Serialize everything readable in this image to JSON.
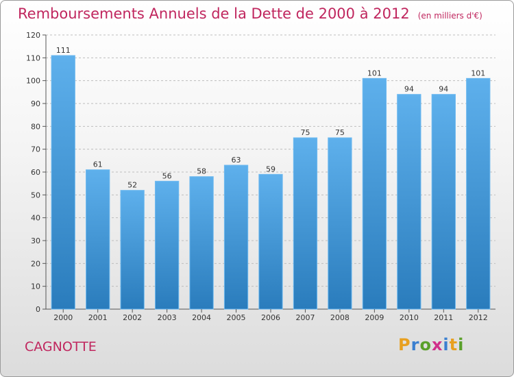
{
  "header": {
    "title": "Remboursements Annuels de la Dette de 2000 à 2012",
    "unit": "(en milliers d'€)"
  },
  "commune": "CAGNOTTE",
  "logo": {
    "text": "Proxiti"
  },
  "colors": {
    "title": "#c0265e",
    "bar_top": "#5eb0ec",
    "bar_bottom": "#2a7cbc",
    "grid": "#bdbdbd"
  },
  "chart_data": {
    "type": "bar",
    "title": "Remboursements Annuels de la Dette de 2000 à 2012",
    "xlabel": "",
    "ylabel": "",
    "categories": [
      "2000",
      "2001",
      "2002",
      "2003",
      "2004",
      "2005",
      "2006",
      "2007",
      "2008",
      "2009",
      "2010",
      "2011",
      "2012"
    ],
    "values": [
      111,
      61,
      52,
      56,
      58,
      63,
      59,
      75,
      75,
      101,
      94,
      94,
      101
    ],
    "ylim": [
      0,
      120
    ],
    "yticks": [
      0,
      10,
      20,
      30,
      40,
      50,
      60,
      70,
      80,
      90,
      100,
      110,
      120
    ],
    "grid": true,
    "data_labels": true
  }
}
